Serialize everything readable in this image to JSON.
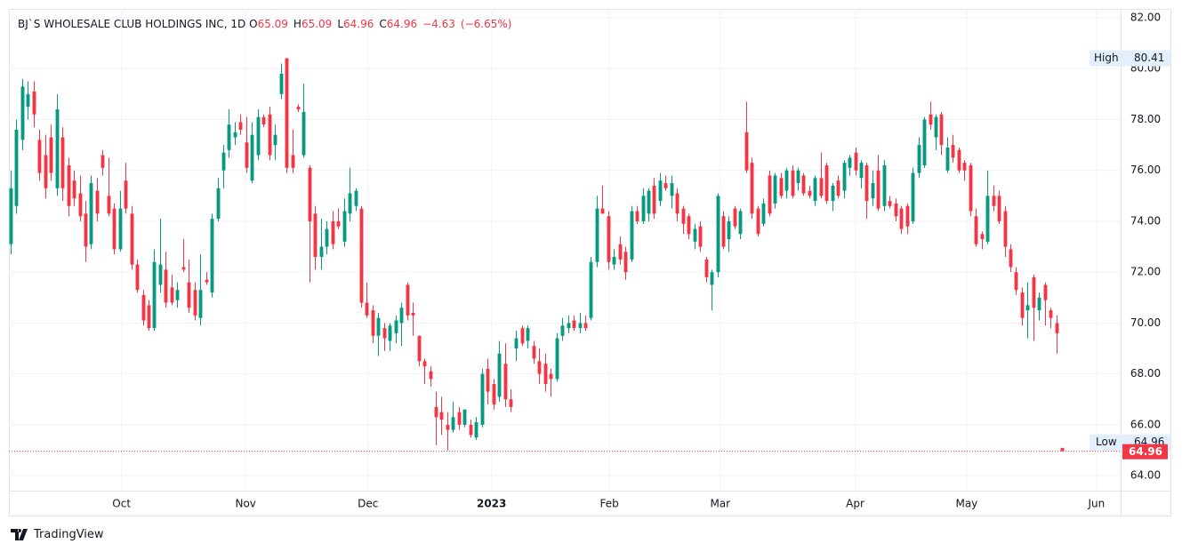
{
  "chart_data": {
    "type": "candlestick",
    "symbol": "BJ`S WHOLESALE CLUB HOLDINGS INC, 1D",
    "ohlc_letters": [
      "O",
      "H",
      "L",
      "C"
    ],
    "change": {
      "value": -4.63,
      "label": "−4.63"
    },
    "change_pct": {
      "value": -6.65,
      "label": "(−6.65%)"
    },
    "high_label": "High",
    "low_label": "Low",
    "brand": "TradingView",
    "up_color": "#089981",
    "down_color": "#f23645",
    "grid": true,
    "ylim": [
      63.41,
      82.35
    ],
    "yticks": [
      {
        "value": 64,
        "label": "64.00"
      },
      {
        "value": 66,
        "label": "66.00"
      },
      {
        "value": 68,
        "label": "68.00"
      },
      {
        "value": 70,
        "label": "70.00"
      },
      {
        "value": 72,
        "label": "72.00"
      },
      {
        "value": 74,
        "label": "74.00"
      },
      {
        "value": 76,
        "label": "76.00"
      },
      {
        "value": 78,
        "label": "78.00"
      },
      {
        "value": 80,
        "label": "80.00"
      },
      {
        "value": 82,
        "label": "82.00"
      }
    ],
    "xlim": [
      -0.31,
      193.2
    ],
    "xticks": [
      {
        "value": 19.3,
        "label": "Oct"
      },
      {
        "value": 40.9,
        "label": "Nov"
      },
      {
        "value": 62.2,
        "label": "Dec"
      },
      {
        "value": 83.7,
        "label": "2023"
      },
      {
        "value": 104.2,
        "label": "Feb"
      },
      {
        "value": 123.5,
        "label": "Mar"
      },
      {
        "value": 147,
        "label": "Apr"
      },
      {
        "value": 166.4,
        "label": "May"
      },
      {
        "value": 189,
        "label": "Jun"
      }
    ],
    "candles": [
      [
        73.1,
        76,
        72.7,
        75.3
      ],
      [
        74.6,
        78,
        74.3,
        77.6
      ],
      [
        77.2,
        79.6,
        76.8,
        79.3
      ],
      [
        78.5,
        79.5,
        78,
        79
      ],
      [
        79.1,
        79.5,
        77.7,
        78.2
      ],
      [
        77.2,
        77.6,
        75.6,
        75.9
      ],
      [
        76.6,
        77.4,
        74.9,
        75.3
      ],
      [
        77.3,
        77.8,
        75.6,
        75.9
      ],
      [
        75.3,
        79,
        75,
        78.4
      ],
      [
        77.3,
        77.7,
        74.8,
        75.3
      ],
      [
        76.2,
        76.5,
        74.2,
        74.6
      ],
      [
        75.6,
        76,
        74.6,
        74.9
      ],
      [
        75.1,
        75.8,
        74,
        74.2
      ],
      [
        74.3,
        74.8,
        72.4,
        73
      ],
      [
        73.1,
        75.8,
        72.9,
        75.5
      ],
      [
        75.2,
        75.7,
        74,
        74.3
      ],
      [
        76.6,
        76.8,
        75.8,
        76.1
      ],
      [
        75,
        76.5,
        74.2,
        74.3
      ],
      [
        74.5,
        74.7,
        72.7,
        72.9
      ],
      [
        72.9,
        75.2,
        72.8,
        74.5
      ],
      [
        75.6,
        76.3,
        74.3,
        74.5
      ],
      [
        74.3,
        74.6,
        72.1,
        72.3
      ],
      [
        72.3,
        72.5,
        71.2,
        71.3
      ],
      [
        71.1,
        71.3,
        69.9,
        70.1
      ],
      [
        70.7,
        70.9,
        69.7,
        69.8
      ],
      [
        69.8,
        72.9,
        69.7,
        72.4
      ],
      [
        71.5,
        74.1,
        71.2,
        72.3
      ],
      [
        72.1,
        72.8,
        70.6,
        70.8
      ],
      [
        71.4,
        71.9,
        70.7,
        70.8
      ],
      [
        70.9,
        71.6,
        70.6,
        71.3
      ],
      [
        72.2,
        73.3,
        72,
        72.1
      ],
      [
        71.6,
        72.5,
        70.4,
        70.6
      ],
      [
        71.3,
        71.6,
        70.1,
        70.3
      ],
      [
        70.2,
        72.7,
        69.9,
        71.3
      ],
      [
        71.7,
        72,
        71.5,
        71.6
      ],
      [
        71.2,
        74.3,
        71,
        74.1
      ],
      [
        74.1,
        75.7,
        74,
        75.3
      ],
      [
        76,
        77,
        75.3,
        76.7
      ],
      [
        76.8,
        78.4,
        76.5,
        77.8
      ],
      [
        77.3,
        77.9,
        77,
        77.5
      ],
      [
        77.9,
        78.2,
        77.4,
        77.6
      ],
      [
        77.1,
        78.1,
        75.9,
        76.1
      ],
      [
        75.6,
        77.9,
        75.5,
        77.4
      ],
      [
        76.6,
        78.4,
        76.4,
        78.1
      ],
      [
        78.1,
        78.2,
        77.7,
        77.8
      ],
      [
        78.2,
        78.5,
        76.4,
        76.6
      ],
      [
        77,
        77.8,
        76.4,
        77.4
      ],
      [
        79,
        80.2,
        78.8,
        79.8
      ],
      [
        80.41,
        80.41,
        75.9,
        76.1
      ],
      [
        76.6,
        77.6,
        75.9,
        76.1
      ],
      [
        78.5,
        78.6,
        78.3,
        78.4
      ],
      [
        76.6,
        79.4,
        76.5,
        78.3
      ],
      [
        76.1,
        76.2,
        71.6,
        74
      ],
      [
        74.3,
        74.6,
        72.1,
        72.6
      ],
      [
        72.6,
        74.1,
        72.1,
        73
      ],
      [
        73,
        74,
        72.7,
        73.7
      ],
      [
        74,
        74.4,
        72.9,
        73.1
      ],
      [
        74,
        74.5,
        73.7,
        73.8
      ],
      [
        73.2,
        74.9,
        73,
        74.4
      ],
      [
        74.3,
        76.1,
        74,
        75.1
      ],
      [
        74.6,
        75.3,
        74.4,
        75.2
      ],
      [
        74.5,
        74.6,
        70.6,
        70.8
      ],
      [
        70.8,
        71.6,
        70.2,
        70.3
      ],
      [
        70.5,
        70.7,
        69.2,
        69.5
      ],
      [
        69.5,
        70.4,
        68.7,
        70.2
      ],
      [
        69.8,
        70,
        68.9,
        69.4
      ],
      [
        69.3,
        70,
        68.9,
        69.9
      ],
      [
        69.6,
        70.3,
        69.2,
        70.1
      ],
      [
        70,
        70.8,
        69.1,
        70.6
      ],
      [
        71.5,
        71.6,
        70.1,
        70.3
      ],
      [
        70.4,
        70.8,
        69.5,
        70.3
      ],
      [
        69.5,
        69.5,
        68.3,
        68.5
      ],
      [
        68.5,
        68.6,
        67.6,
        68.3
      ],
      [
        68.1,
        68.3,
        67.5,
        67.8
      ],
      [
        66.7,
        67.3,
        65.2,
        66.3
      ],
      [
        66.5,
        67.1,
        65.6,
        66.2
      ],
      [
        66,
        66.5,
        65,
        65.8
      ],
      [
        65.8,
        66.9,
        65.7,
        66.3
      ],
      [
        66.5,
        66.7,
        65.8,
        66
      ],
      [
        66,
        66.6,
        65.9,
        66.6
      ],
      [
        66,
        66.2,
        65.5,
        65.6
      ],
      [
        65.5,
        66.3,
        65.4,
        66.1
      ],
      [
        66,
        68.2,
        65.9,
        68
      ],
      [
        68.2,
        68.6,
        66.8,
        67.3
      ],
      [
        67.6,
        67.8,
        66.6,
        66.8
      ],
      [
        67.1,
        69.3,
        66.9,
        68.8
      ],
      [
        68.4,
        69.2,
        66.7,
        67
      ],
      [
        67,
        67.4,
        66.5,
        66.7
      ],
      [
        69,
        69.7,
        68.5,
        69.4
      ],
      [
        69.8,
        69.9,
        69.1,
        69.2
      ],
      [
        69.3,
        69.9,
        69,
        69.8
      ],
      [
        69.1,
        69.3,
        68.4,
        68.6
      ],
      [
        68.5,
        69,
        67.6,
        68
      ],
      [
        68.4,
        68.8,
        67.3,
        67.6
      ],
      [
        68,
        68.2,
        67.1,
        67.8
      ],
      [
        67.8,
        69.6,
        67.7,
        69.4
      ],
      [
        69.5,
        70.2,
        69.3,
        69.9
      ],
      [
        69.8,
        70.3,
        69.6,
        70
      ],
      [
        70.1,
        70.3,
        69.7,
        69.8
      ],
      [
        69.8,
        70.4,
        69.6,
        70
      ],
      [
        70,
        70.3,
        69.7,
        69.8
      ],
      [
        70.2,
        72.6,
        70.1,
        72.4
      ],
      [
        72.4,
        75,
        72.2,
        74.5
      ],
      [
        74.5,
        75.4,
        74.3,
        74.3
      ],
      [
        74.2,
        74.4,
        72.1,
        72.4
      ],
      [
        72.3,
        72.9,
        72.1,
        72.6
      ],
      [
        73.1,
        73.4,
        72.3,
        72.5
      ],
      [
        72.8,
        73,
        71.7,
        72
      ],
      [
        72.5,
        74.6,
        72.4,
        74.4
      ],
      [
        74.4,
        74.6,
        73.9,
        74
      ],
      [
        74,
        75.3,
        73.9,
        75
      ],
      [
        74.3,
        75.3,
        74,
        75.2
      ],
      [
        75.4,
        75.7,
        74.1,
        74.3
      ],
      [
        74.8,
        75.9,
        74.6,
        75.6
      ],
      [
        75.5,
        75.8,
        75.2,
        75.3
      ],
      [
        75,
        75.8,
        74.5,
        75.5
      ],
      [
        75.1,
        75.3,
        74,
        74.3
      ],
      [
        74.5,
        74.6,
        73.5,
        73.9
      ],
      [
        74.2,
        74.3,
        73.3,
        73.5
      ],
      [
        73.2,
        73.9,
        72.9,
        73.7
      ],
      [
        73.8,
        74,
        72.8,
        73
      ],
      [
        72.5,
        72.6,
        71.6,
        71.8
      ],
      [
        71.5,
        72.1,
        70.5,
        72
      ],
      [
        72,
        75.1,
        71.8,
        75
      ],
      [
        74.2,
        74.4,
        72.9,
        73
      ],
      [
        73.3,
        74.2,
        72.8,
        74
      ],
      [
        74.5,
        74.6,
        73.7,
        73.8
      ],
      [
        73.5,
        74.5,
        73.3,
        74.4
      ],
      [
        77.5,
        78.7,
        75.9,
        76
      ],
      [
        76.3,
        76.5,
        74.1,
        74.3
      ],
      [
        74.5,
        74.6,
        73.4,
        73.5
      ],
      [
        73.9,
        74.9,
        73.8,
        74.7
      ],
      [
        75.8,
        76,
        74.2,
        74.3
      ],
      [
        74.7,
        75.9,
        74.5,
        75.8
      ],
      [
        75.7,
        75.9,
        74.9,
        75
      ],
      [
        75.2,
        76.1,
        74.9,
        76
      ],
      [
        76,
        76.2,
        74.9,
        75
      ],
      [
        75.5,
        76.1,
        75.2,
        76
      ],
      [
        75.8,
        75.9,
        75,
        75.1
      ],
      [
        75.2,
        75.4,
        74.9,
        75
      ],
      [
        74.8,
        75.8,
        74.6,
        75.7
      ],
      [
        75.7,
        76.7,
        74.9,
        75
      ],
      [
        76.2,
        76.3,
        74.7,
        74.8
      ],
      [
        74.8,
        75.5,
        74.4,
        75.4
      ],
      [
        75.6,
        75.8,
        74.9,
        75
      ],
      [
        75.2,
        76.4,
        74.9,
        76.3
      ],
      [
        76.1,
        76.6,
        75.8,
        76.5
      ],
      [
        76.7,
        76.9,
        75.8,
        76
      ],
      [
        75.7,
        76.4,
        75.3,
        76.3
      ],
      [
        76.2,
        76.3,
        74.1,
        74.8
      ],
      [
        74.9,
        76,
        74.6,
        75.5
      ],
      [
        76,
        76.6,
        74.4,
        74.5
      ],
      [
        74.6,
        76.4,
        74.4,
        76.2
      ],
      [
        74.8,
        75,
        74.5,
        74.6
      ],
      [
        74.7,
        74.9,
        74,
        74.2
      ],
      [
        74.5,
        74.6,
        73.5,
        73.7
      ],
      [
        74.6,
        74.7,
        73.5,
        73.8
      ],
      [
        74,
        76.1,
        73.9,
        75.9
      ],
      [
        75.9,
        77.3,
        75.7,
        77
      ],
      [
        76.2,
        78.1,
        76.1,
        78
      ],
      [
        78.2,
        78.7,
        77.6,
        77.8
      ],
      [
        77.3,
        78.2,
        76.8,
        78.1
      ],
      [
        78.2,
        78.3,
        76.6,
        77
      ],
      [
        76,
        77.3,
        75.9,
        76.9
      ],
      [
        77,
        77.4,
        76.3,
        76.5
      ],
      [
        76.8,
        76.9,
        75.9,
        76
      ],
      [
        76.3,
        76.4,
        75.6,
        76
      ],
      [
        76.2,
        76.3,
        74.2,
        74.4
      ],
      [
        74.2,
        74.5,
        73,
        73.1
      ],
      [
        73.5,
        73.6,
        72.9,
        73.3
      ],
      [
        73.2,
        76,
        73.1,
        75
      ],
      [
        75,
        75.4,
        74.4,
        74.6
      ],
      [
        75,
        75.2,
        73.9,
        74
      ],
      [
        74.4,
        74.6,
        72.6,
        73
      ],
      [
        72.9,
        73.1,
        72,
        72.2
      ],
      [
        72,
        72.2,
        71.1,
        71.3
      ],
      [
        71.2,
        71.4,
        69.9,
        70.2
      ],
      [
        70.5,
        71.6,
        69.4,
        70.7
      ],
      [
        71.8,
        71.9,
        69.3,
        70.6
      ],
      [
        70.5,
        71.2,
        70.1,
        71
      ],
      [
        71.5,
        71.6,
        69.9,
        70.9
      ],
      [
        70.5,
        70.6,
        69.8,
        70.2
      ],
      [
        70,
        70.3,
        68.8,
        69.6
      ],
      [
        65.09,
        65.09,
        64.96,
        64.96
      ]
    ]
  }
}
